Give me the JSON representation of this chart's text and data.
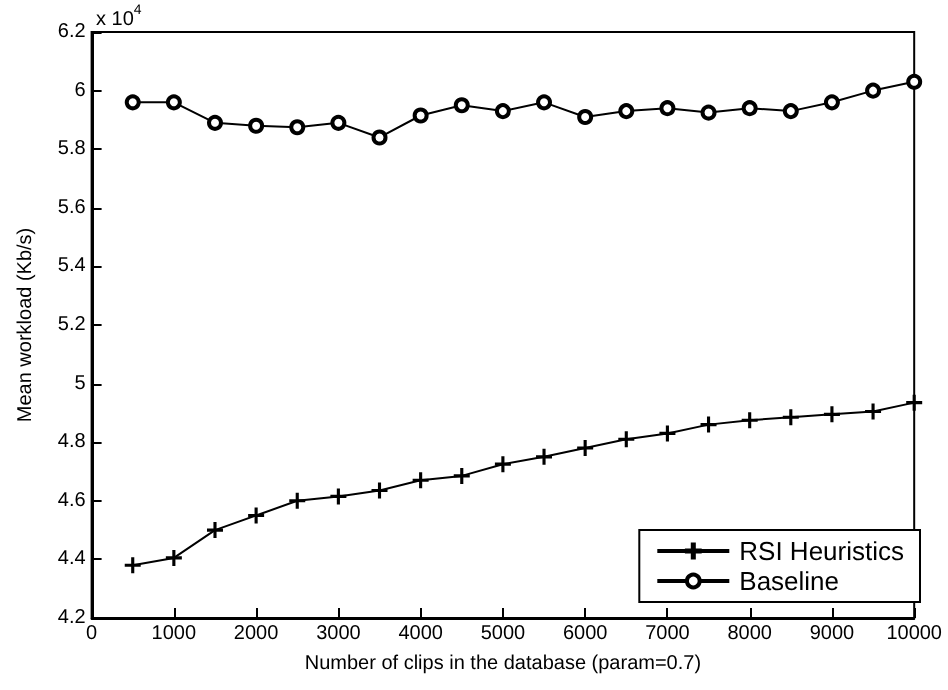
{
  "chart_data": {
    "type": "line",
    "xlabel": "Number of clips in the database (param=0.7)",
    "ylabel": "Mean workload (Kb/s)",
    "annotations": [
      "x 10$^{4}$"
    ],
    "x": [
      500,
      1000,
      1500,
      2000,
      2500,
      3000,
      3500,
      4000,
      4500,
      5000,
      5500,
      6000,
      6500,
      7000,
      7500,
      8000,
      8500,
      9000,
      9500,
      10000
    ],
    "series": [
      {
        "name": "RSI Heuristics",
        "color": "#000000",
        "marker": "cross",
        "values": [
          4.38,
          4.405,
          4.5,
          4.55,
          4.6,
          4.615,
          4.635,
          4.67,
          4.685,
          4.725,
          4.75,
          4.78,
          4.81,
          4.83,
          4.86,
          4.875,
          4.885,
          4.895,
          4.905,
          4.935
        ]
      },
      {
        "name": "Baseline",
        "color": "#000000",
        "marker": "circle",
        "values": [
          5.96,
          5.96,
          5.89,
          5.88,
          5.875,
          5.89,
          5.84,
          5.915,
          5.95,
          5.93,
          5.96,
          5.91,
          5.93,
          5.94,
          5.925,
          5.94,
          5.93,
          5.96,
          6.0,
          6.03
        ]
      }
    ],
    "xlim": [
      0,
      10000
    ],
    "xticks": [
      0,
      1000,
      2000,
      3000,
      4000,
      5000,
      6000,
      7000,
      8000,
      9000,
      10000
    ],
    "ylim": [
      4.2,
      6.2
    ],
    "yticks": [
      4.2,
      4.4,
      4.6,
      4.8,
      5,
      5.2,
      5.4,
      5.6,
      5.8,
      6,
      6.2
    ],
    "grid": false,
    "legend": "bottom right",
    "line_style": "solid"
  }
}
